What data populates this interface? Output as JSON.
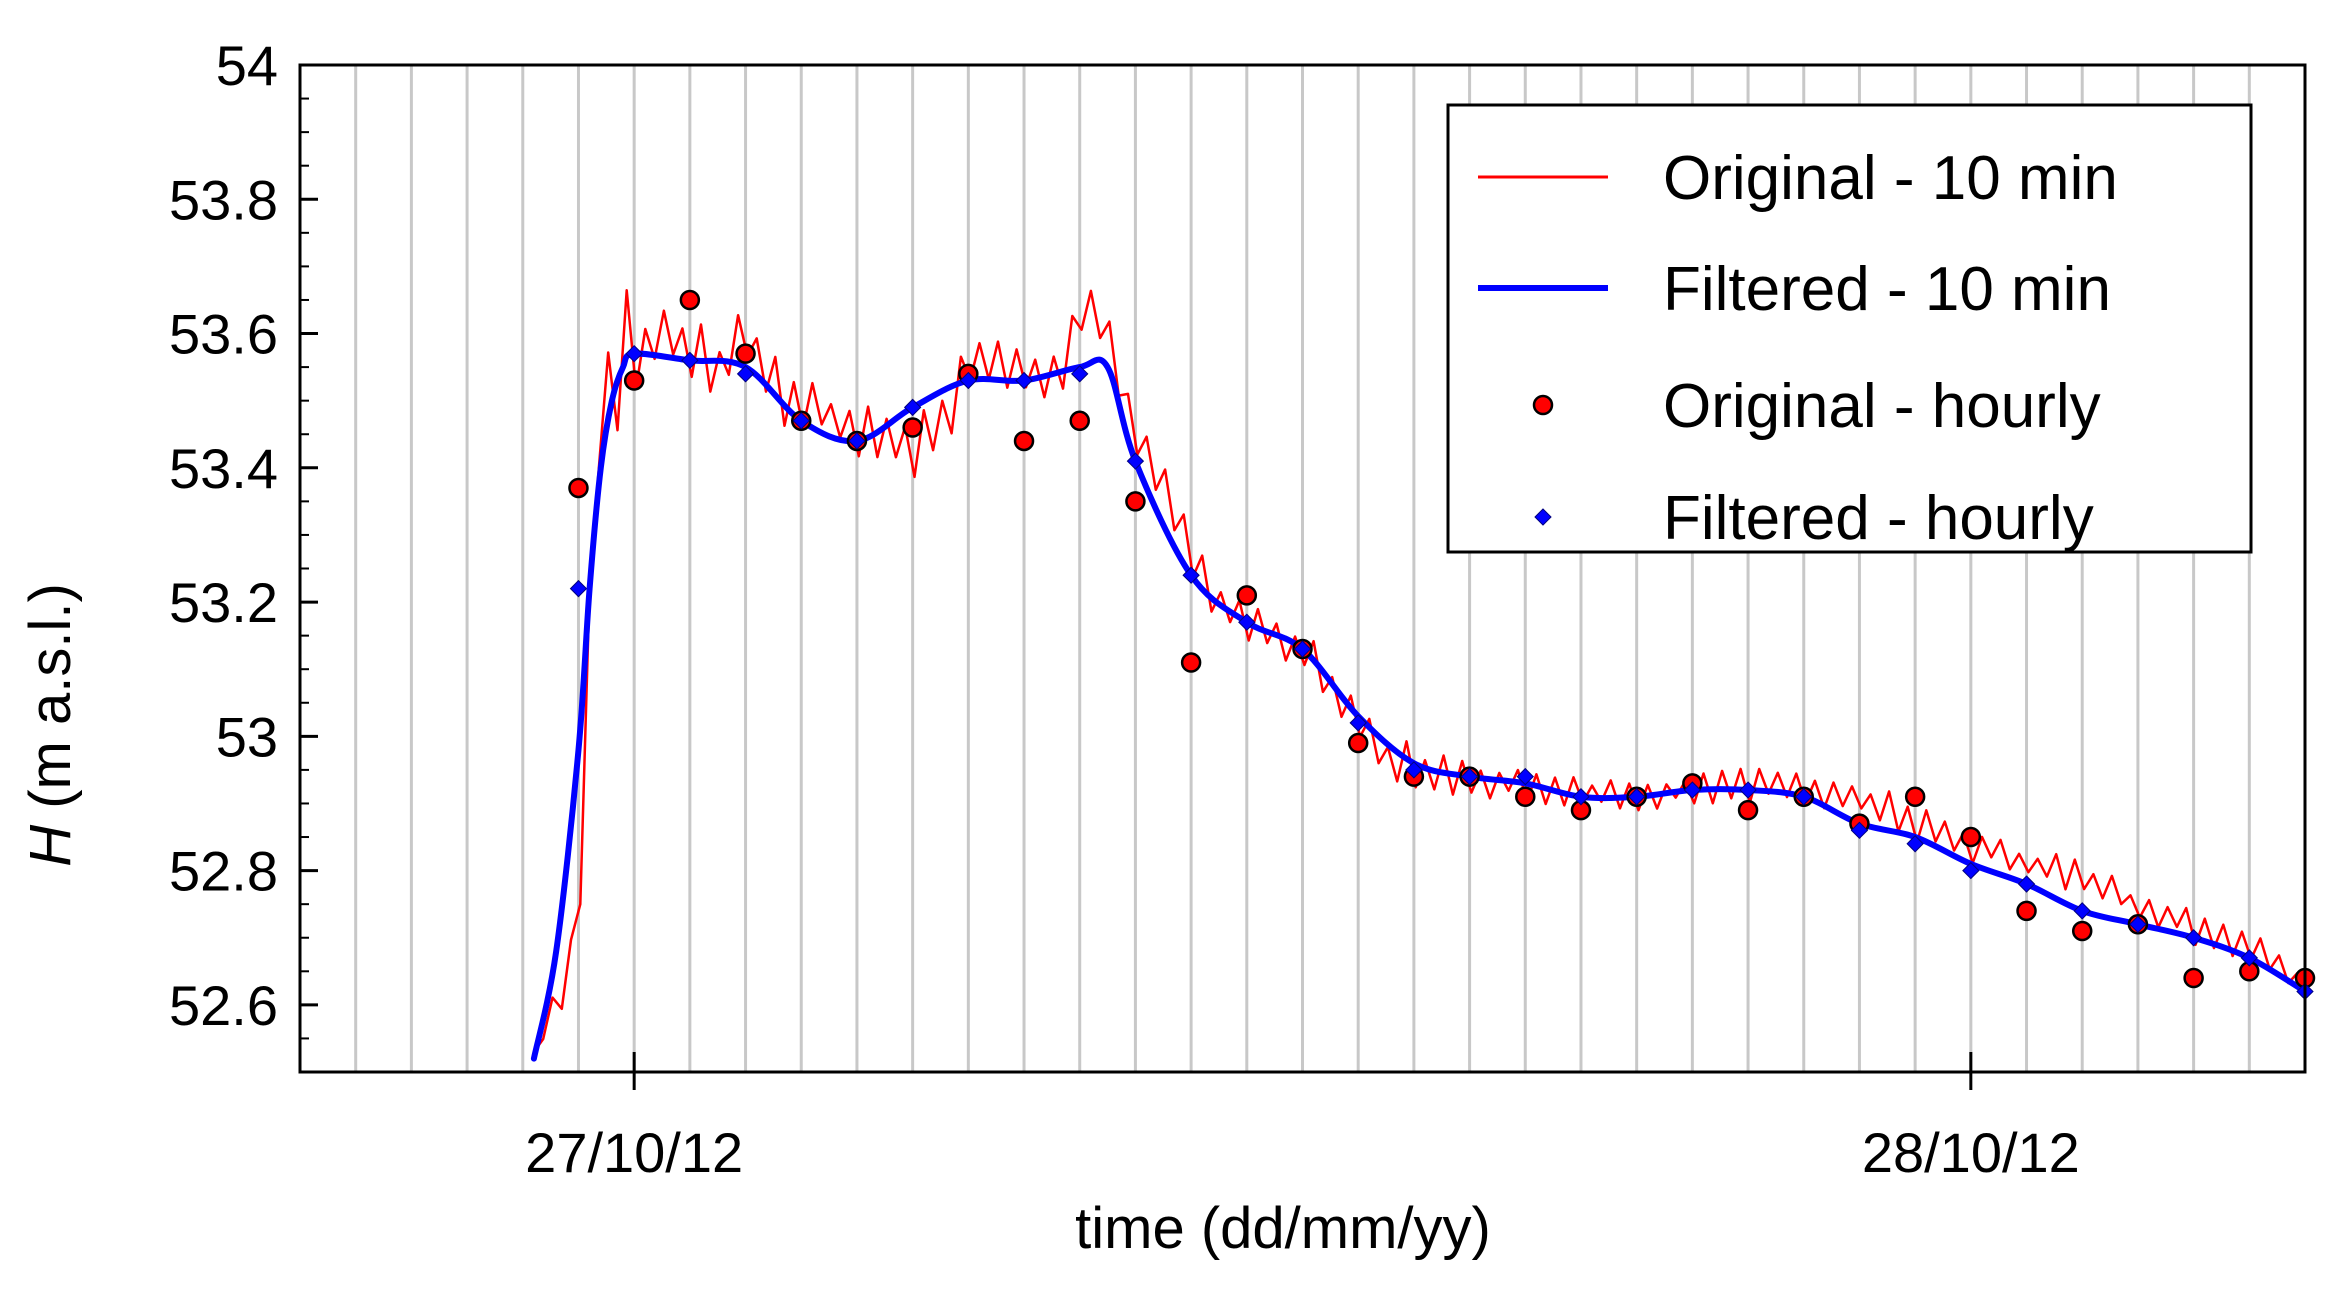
{
  "chart_data": {
    "type": "line",
    "xlabel": "time (dd/mm/yy)",
    "ylabel_var": "H",
    "ylabel_unit": " (m a.s.l.)",
    "ylim": [
      52.5,
      54.0
    ],
    "xlim_hours": [
      -6,
      30
    ],
    "x_unit": "hours after 27/10/12 00:00",
    "y_ticks": [
      52.6,
      52.8,
      53,
      53.2,
      53.4,
      53.6,
      53.8,
      54
    ],
    "y_tick_labels": [
      "52.6",
      "52.8",
      "53",
      "53.2",
      "53.4",
      "53.6",
      "53.8",
      "54"
    ],
    "x_ticks": [
      {
        "x": 0,
        "label": "27/10/12"
      },
      {
        "x": 24,
        "label": "28/10/12"
      }
    ],
    "grid": "vertical lines every hour",
    "legend_position": "top-right",
    "colors": {
      "original": "#ff0000",
      "filtered": "#0000ff",
      "marker_edge": "#000000",
      "grid": "#c8c8c8"
    },
    "series": [
      {
        "name": "Original - 10 min",
        "style": "thin-line",
        "anchors_x": [
          -1.8,
          -1.5,
          -1.0,
          -0.9,
          -0.8,
          -0.7,
          -0.6,
          -0.5,
          -0.4,
          -0.3,
          -0.2,
          -0.1,
          0,
          0.5,
          1.0,
          1.5,
          2,
          2.5,
          3,
          3.5,
          4,
          4.5,
          5,
          5.5,
          6,
          6.5,
          7,
          7.5,
          8,
          8.3,
          8.6,
          9,
          9.3,
          9.6,
          10,
          10.3,
          10.6,
          11,
          11.5,
          12,
          12.5,
          13,
          13.5,
          14,
          15,
          16,
          17,
          18,
          19,
          20,
          21,
          22,
          23,
          24,
          25,
          26,
          27,
          28,
          29,
          29.5,
          30
        ],
        "anchors_y": [
          52.53,
          52.58,
          52.7,
          52.95,
          53.2,
          53.38,
          53.48,
          53.53,
          53.52,
          53.5,
          53.55,
          53.64,
          53.54,
          53.6,
          53.58,
          53.55,
          53.6,
          53.52,
          53.49,
          53.48,
          53.45,
          53.44,
          53.43,
          53.46,
          53.55,
          53.55,
          53.54,
          53.53,
          53.62,
          53.64,
          53.55,
          53.45,
          53.4,
          53.35,
          53.28,
          53.22,
          53.2,
          53.17,
          53.15,
          53.13,
          53.08,
          53.02,
          52.97,
          52.95,
          52.94,
          52.93,
          52.92,
          52.91,
          52.92,
          52.93,
          52.92,
          52.91,
          52.87,
          52.84,
          52.81,
          52.79,
          52.75,
          52.72,
          52.69,
          52.66,
          52.63
        ],
        "noise": [
          0,
          0.03,
          0.04,
          0.05,
          0.05,
          0.05,
          0.05,
          0.06,
          0.05,
          0.05,
          0.06,
          0.07,
          0.05,
          0.05,
          0.05,
          0.05,
          0.05,
          0.05,
          0.05,
          0.04,
          0.05,
          0.04,
          0.05,
          0.05,
          0.05,
          0.05,
          0.04,
          0.05,
          0.05,
          0.07,
          0.06,
          0.05,
          0.05,
          0.04,
          0.04,
          0.04,
          0.03,
          0.04,
          0.03,
          0.03,
          0.04,
          0.03,
          0.03,
          0.04,
          0.03,
          0.03,
          0.03,
          0.02,
          0.03,
          0.03,
          0.03,
          0.03,
          0.03,
          0.03,
          0.03,
          0.03,
          0.02,
          0.03,
          0.03,
          0.02,
          0.02
        ]
      },
      {
        "name": "Filtered - 10 min",
        "style": "thick-line",
        "anchors_x": [
          -1.8,
          -1.4,
          -1.0,
          -0.8,
          -0.6,
          -0.4,
          -0.2,
          0,
          1,
          2,
          3,
          4,
          5,
          6,
          7,
          8,
          8.5,
          9,
          10,
          11,
          12,
          13,
          14,
          15,
          16,
          17,
          18,
          19,
          20,
          21,
          22,
          23,
          24,
          25,
          26,
          27,
          28,
          29,
          30
        ],
        "anchors_y": [
          52.52,
          52.68,
          52.98,
          53.22,
          53.4,
          53.5,
          53.55,
          53.57,
          53.56,
          53.55,
          53.47,
          53.44,
          53.49,
          53.53,
          53.53,
          53.55,
          53.55,
          53.41,
          53.24,
          53.17,
          53.13,
          53.03,
          52.96,
          52.94,
          52.93,
          52.91,
          52.91,
          52.92,
          52.92,
          52.91,
          52.87,
          52.85,
          52.81,
          52.78,
          52.74,
          52.72,
          52.7,
          52.67,
          52.62
        ]
      },
      {
        "name": "Original - hourly",
        "style": "circle-markers",
        "x": [
          -1,
          0,
          1,
          2,
          3,
          4,
          5,
          6,
          7,
          8,
          9,
          10,
          11,
          12,
          13,
          14,
          15,
          16,
          17,
          18,
          19,
          20,
          21,
          22,
          23,
          24,
          25,
          26,
          27,
          28,
          29,
          30
        ],
        "y": [
          53.37,
          53.53,
          53.65,
          53.57,
          53.47,
          53.44,
          53.46,
          53.54,
          53.44,
          53.47,
          53.35,
          53.11,
          53.21,
          53.13,
          52.99,
          52.94,
          52.94,
          52.91,
          52.89,
          52.91,
          52.93,
          52.89,
          52.91,
          52.87,
          52.91,
          52.85,
          52.74,
          52.71,
          52.72,
          52.64,
          52.65,
          52.64
        ]
      },
      {
        "name": "Filtered - hourly",
        "style": "diamond-markers",
        "x": [
          -1,
          0,
          1,
          2,
          3,
          4,
          5,
          6,
          7,
          8,
          9,
          10,
          11,
          12,
          13,
          14,
          15,
          16,
          17,
          18,
          19,
          20,
          21,
          22,
          23,
          24,
          25,
          26,
          27,
          28,
          29,
          30
        ],
        "y": [
          53.22,
          53.57,
          53.56,
          53.54,
          53.47,
          53.44,
          53.49,
          53.53,
          53.53,
          53.54,
          53.41,
          53.24,
          53.17,
          53.13,
          53.02,
          52.95,
          52.94,
          52.94,
          52.91,
          52.91,
          52.92,
          52.92,
          52.91,
          52.86,
          52.84,
          52.8,
          52.78,
          52.74,
          52.72,
          52.7,
          52.67,
          52.62
        ]
      }
    ],
    "legend": [
      {
        "label": "Original - 10 min",
        "style": "thin-line"
      },
      {
        "label": "Filtered - 10 min",
        "style": "thick-line"
      },
      {
        "label": "Original - hourly",
        "style": "circle-markers"
      },
      {
        "label": "Filtered - hourly",
        "style": "diamond-markers"
      }
    ]
  }
}
